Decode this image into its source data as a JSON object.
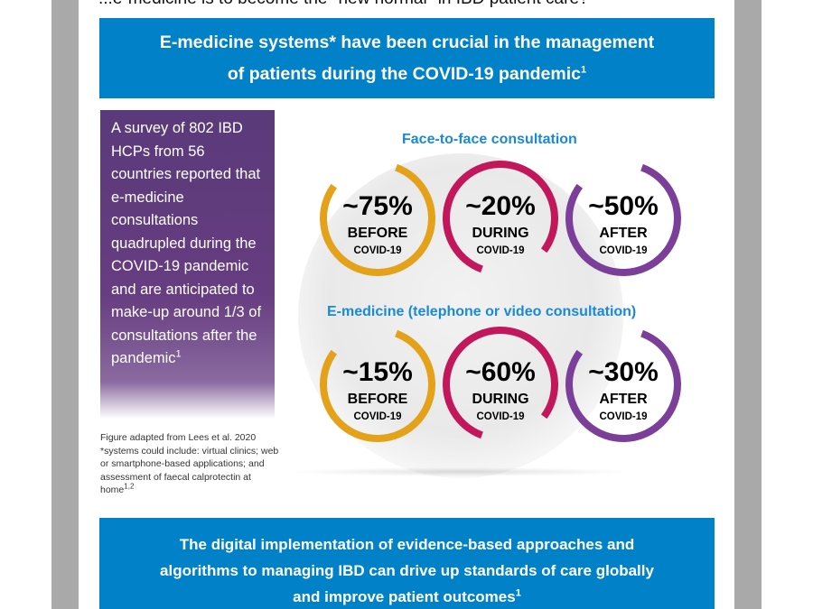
{
  "header": {
    "title": "...e-medicine is to become the \"new normal\" in IBD patient care?"
  },
  "top_banner": {
    "line1": "E-medicine systems* have been crucial in the management",
    "line2": "of patients during the COVID-19 pandemic",
    "sup": "1"
  },
  "survey": {
    "text": "A survey of 802 IBD HCPs from 56 countries reported that e-medicine consultations quadrupled during the COVID-19 pandemic and are anticipated to make-up around 1/3 of consultations after the pandemic",
    "sup": "1"
  },
  "footnote": {
    "line1": "Figure adapted from Lees et al. 2020",
    "line2": "*systems could include: virtual clinics; web or smartphone-based applications; and assessment of faecal calprotectin at home",
    "sup": "1,2"
  },
  "face_to_face": {
    "label": "Face-to-face consultation",
    "rings": [
      {
        "pct": "~75%",
        "phase": "BEFORE",
        "sub": "COVID-19",
        "color": "#e3a21a"
      },
      {
        "pct": "~20%",
        "phase": "DURING",
        "sub": "COVID-19",
        "color": "#c2185b"
      },
      {
        "pct": "~50%",
        "phase": "AFTER",
        "sub": "COVID-19",
        "color": "#7b3f9a"
      }
    ]
  },
  "emedicine": {
    "label": "E-medicine (telephone or video consultation)",
    "rings": [
      {
        "pct": "~15%",
        "phase": "BEFORE",
        "sub": "COVID-19",
        "color": "#e3a21a"
      },
      {
        "pct": "~60%",
        "phase": "DURING",
        "sub": "COVID-19",
        "color": "#c2185b"
      },
      {
        "pct": "~30%",
        "phase": "AFTER",
        "sub": "COVID-19",
        "color": "#7b3f9a"
      }
    ]
  },
  "bottom_banner": {
    "line1": "The digital implementation of evidence-based approaches and",
    "line2": "algorithms to managing IBD can drive up standards of care globally",
    "line3": "and improve patient outcomes",
    "sup": "1"
  }
}
